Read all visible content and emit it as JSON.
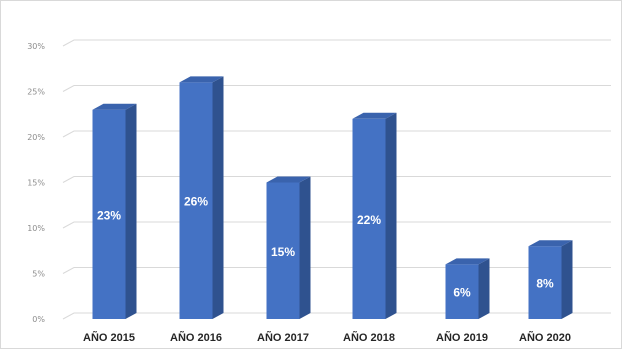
{
  "chart_data": {
    "type": "bar",
    "title": "",
    "xlabel": "",
    "ylabel": "",
    "categories": [
      "AÑO 2015",
      "AÑO 2016",
      "AÑO 2017",
      "AÑO 2018",
      "AÑO 2019",
      "AÑO 2020"
    ],
    "values": [
      23,
      26,
      15,
      22,
      6,
      8
    ],
    "data_labels": [
      "23%",
      "26%",
      "15%",
      "22%",
      "6%",
      "8%"
    ],
    "y_ticks": [
      "0%",
      "5%",
      "10%",
      "15%",
      "20%",
      "25%",
      "30%"
    ],
    "ylim": [
      0,
      30
    ],
    "grid": true,
    "bar_style": "3d-column",
    "colors": {
      "bar_front": "#4472c4",
      "bar_side": "#2f528f",
      "bar_top": "#3a63ad",
      "grid": "#d9d9d9",
      "tick_text": "#8c8c8c",
      "category_text": "#262626",
      "data_label_text": "#ffffff"
    }
  }
}
